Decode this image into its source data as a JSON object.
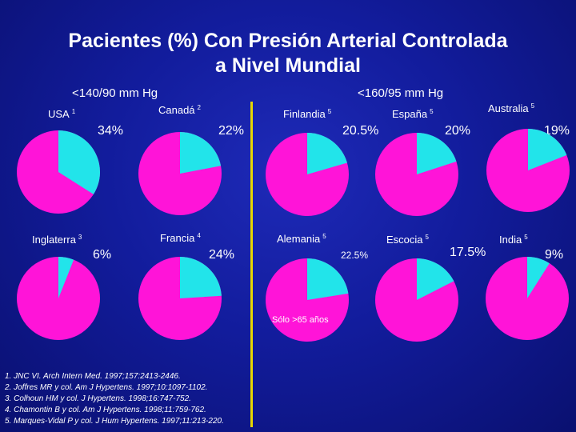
{
  "title_line1": "Pacientes (%) Con Presión Arterial Controlada",
  "title_line2": "a Nivel Mundial",
  "group_left": "<140/90 mm Hg",
  "group_right": "<160/95 mm Hg",
  "note": "Sólo >65 años",
  "colors": {
    "slice": "#22e4ea",
    "rest": "#ff14d8",
    "accent": "#e8d800"
  },
  "chart_data": {
    "type": "pie",
    "charts": [
      {
        "country": "USA",
        "ref": "1",
        "label": "34%",
        "value": 34
      },
      {
        "country": "Canadá",
        "ref": "2",
        "label": "22%",
        "value": 22
      },
      {
        "country": "Finlandia",
        "ref": "5",
        "label": "20.5%",
        "value": 20.5
      },
      {
        "country": "España",
        "ref": "5",
        "label": "20%",
        "value": 20
      },
      {
        "country": "Australia",
        "ref": "5",
        "label": "19%",
        "value": 19
      },
      {
        "country": "Inglaterra",
        "ref": "3",
        "label": "6%",
        "value": 6
      },
      {
        "country": "Francia",
        "ref": "4",
        "label": "24%",
        "value": 24
      },
      {
        "country": "Alemania",
        "ref": "5",
        "label": "22.5%",
        "value": 22.5
      },
      {
        "country": "Escocia",
        "ref": "5",
        "label": "17.5%",
        "value": 17.5
      },
      {
        "country": "India",
        "ref": "5",
        "label": "9%",
        "value": 9
      }
    ]
  },
  "references": [
    "1. JNC VI. Arch Intern Med. 1997;157:2413-2446.",
    "2. Joffres MR y col. Am J Hypertens. 1997;10:1097-1102.",
    "3. Colhoun HM y col. J Hypertens. 1998;16:747-752.",
    "4. Chamontin B y col. Am J Hypertens. 1998;11:759-762.",
    "5. Marques-Vidal P y col. J Hum Hypertens. 1997;11:213-220."
  ]
}
